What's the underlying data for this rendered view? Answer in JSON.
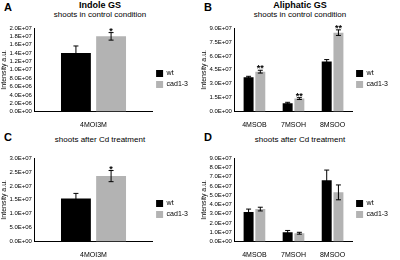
{
  "chart_data": [
    {
      "type": "bar",
      "panel": "A",
      "title": "Indole GS",
      "subtitle": "shoots in control condition",
      "y_label": "Intensity a.u.",
      "categories": [
        "4MOI3M"
      ],
      "series": [
        {
          "name": "wt",
          "color": "#000000",
          "values": [
            14000000
          ],
          "errors": [
            1700000
          ],
          "annotations": [
            null
          ]
        },
        {
          "name": "cad1-3",
          "color": "#b3b3b3",
          "values": [
            18000000
          ],
          "errors": [
            900000
          ],
          "annotations": [
            "*"
          ]
        }
      ],
      "ylim": [
        0,
        20000000
      ],
      "yticks": [
        {
          "value": 0,
          "label": "0.0E+00"
        },
        {
          "value": 2000000,
          "label": "2.0E+06"
        },
        {
          "value": 4000000,
          "label": "4.0E+06"
        },
        {
          "value": 6000000,
          "label": "6.0E+06"
        },
        {
          "value": 8000000,
          "label": "8.0E+06"
        },
        {
          "value": 10000000,
          "label": "1.0E+07"
        },
        {
          "value": 12000000,
          "label": "1.2E+07"
        },
        {
          "value": 14000000,
          "label": "1.4E+07"
        },
        {
          "value": 16000000,
          "label": "1.6E+07"
        },
        {
          "value": 18000000,
          "label": "1.8E+07"
        },
        {
          "value": 20000000,
          "label": "2.0E+07"
        }
      ],
      "grid": false,
      "legend": "right"
    },
    {
      "type": "bar",
      "panel": "B",
      "title": "Aliphatic GS",
      "subtitle": "shoots in control condition",
      "y_label": "Intensity a.u.",
      "categories": [
        "4MSOB",
        "7MSOH",
        "8MSOO"
      ],
      "series": [
        {
          "name": "wt",
          "color": "#000000",
          "values": [
            37000000,
            9000000,
            54000000
          ],
          "errors": [
            1000000,
            1000000,
            2000000
          ],
          "annotations": [
            null,
            null,
            null
          ]
        },
        {
          "name": "cad1-3",
          "color": "#b3b3b3",
          "values": [
            43000000,
            14000000,
            85000000
          ],
          "errors": [
            1500000,
            1000000,
            3000000
          ],
          "annotations": [
            "**",
            "**",
            "**"
          ]
        }
      ],
      "ylim": [
        0,
        90000000
      ],
      "yticks": [
        {
          "value": 0,
          "label": "0.0E+00"
        },
        {
          "value": 15000000,
          "label": "1.5E+07"
        },
        {
          "value": 30000000,
          "label": "3.0E+07"
        },
        {
          "value": 45000000,
          "label": "4.5E+07"
        },
        {
          "value": 60000000,
          "label": "6.0E+07"
        },
        {
          "value": 75000000,
          "label": "7.5E+07"
        },
        {
          "value": 90000000,
          "label": "9.0E+07"
        }
      ],
      "grid": false,
      "legend": "right"
    },
    {
      "type": "bar",
      "panel": "C",
      "subtitle": "shoots after Cd treatment",
      "y_label": "Intensity a.u.",
      "categories": [
        "4MOI3M"
      ],
      "series": [
        {
          "name": "wt",
          "color": "#000000",
          "values": [
            15500000
          ],
          "errors": [
            1800000
          ],
          "annotations": [
            null
          ]
        },
        {
          "name": "cad1-3",
          "color": "#b3b3b3",
          "values": [
            23500000
          ],
          "errors": [
            2000000
          ],
          "annotations": [
            "*"
          ]
        }
      ],
      "ylim": [
        0,
        30000000
      ],
      "yticks": [
        {
          "value": 0,
          "label": "0.0E+00"
        },
        {
          "value": 5000000,
          "label": "5.0E+06"
        },
        {
          "value": 10000000,
          "label": "1.0E+07"
        },
        {
          "value": 15000000,
          "label": "1.5E+07"
        },
        {
          "value": 20000000,
          "label": "2.0E+07"
        },
        {
          "value": 25000000,
          "label": "2.5E+07"
        },
        {
          "value": 30000000,
          "label": "3.0E+07"
        }
      ],
      "grid": false,
      "legend": "right"
    },
    {
      "type": "bar",
      "panel": "D",
      "subtitle": "shoots after Cd treatment",
      "y_label": "Intensity a.u.",
      "categories": [
        "4MSOB",
        "7MSOH",
        "8MSOO"
      ],
      "series": [
        {
          "name": "wt",
          "color": "#000000",
          "values": [
            32000000,
            10000000,
            66000000
          ],
          "errors": [
            3000000,
            2000000,
            11000000
          ],
          "annotations": [
            null,
            null,
            null
          ]
        },
        {
          "name": "cad1-3",
          "color": "#b3b3b3",
          "values": [
            35000000,
            9000000,
            53000000
          ],
          "errors": [
            2000000,
            1000000,
            8000000
          ],
          "annotations": [
            null,
            null,
            null
          ]
        }
      ],
      "ylim": [
        0,
        90000000
      ],
      "yticks": [
        {
          "value": 0,
          "label": "0.0E+00"
        },
        {
          "value": 10000000,
          "label": "1.0E+07"
        },
        {
          "value": 20000000,
          "label": "2.0E+07"
        },
        {
          "value": 30000000,
          "label": "3.0E+07"
        },
        {
          "value": 40000000,
          "label": "4.0E+07"
        },
        {
          "value": 50000000,
          "label": "5.0E+07"
        },
        {
          "value": 60000000,
          "label": "6.0E+07"
        },
        {
          "value": 70000000,
          "label": "7.0E+07"
        },
        {
          "value": 80000000,
          "label": "8.0E+07"
        },
        {
          "value": 90000000,
          "label": "9.0E+07"
        }
      ],
      "grid": false,
      "legend": "right"
    }
  ]
}
